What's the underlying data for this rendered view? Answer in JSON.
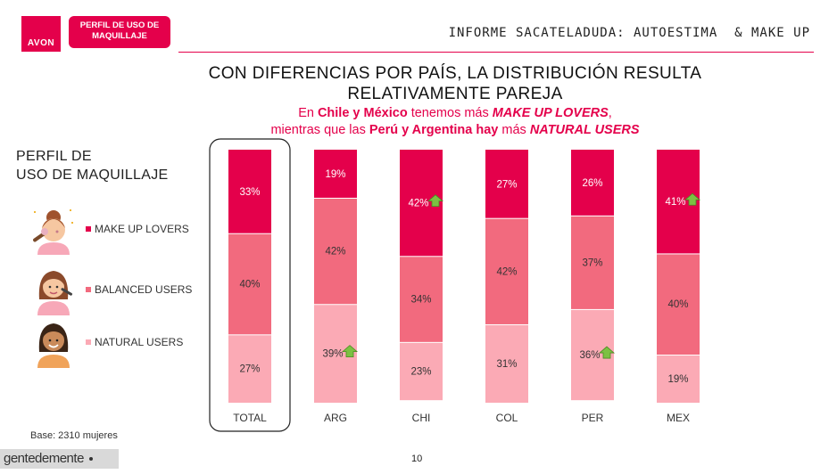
{
  "header": {
    "logo": "AVON",
    "tag_line1": "PERFIL DE USO DE",
    "tag_line2": "MAQUILLAJE",
    "report_title": "INFORME SACATELADUDA: AUTOESTIMA  & MAKE UP"
  },
  "headline": {
    "line1": "CON DIFERENCIAS POR PAÍS, LA DISTRIBUCIÓN RESULTA",
    "line2": "RELATIVAMENTE PAREJA",
    "sub1": {
      "a": "En ",
      "b": "Chile y México",
      "c": " tenemos más ",
      "d": "MAKE UP LOVERS",
      "e": ","
    },
    "sub2": {
      "a": "mientras que las ",
      "b": "Perú y Argentina hay",
      "c": " más ",
      "d": "NATURAL USERS"
    }
  },
  "side_title": {
    "line1": "PERFIL DE",
    "line2": "USO DE MAQUILLAJE"
  },
  "legend": [
    {
      "label": "MAKE UP LOVERS",
      "icon": "woman-makeup-brush-icon",
      "color": "#e4004b"
    },
    {
      "label": "BALANCED USERS",
      "icon": "woman-applying-makeup-icon",
      "color": "#f26a7e"
    },
    {
      "label": "NATURAL USERS",
      "icon": "woman-natural-face-icon",
      "color": "#fbaab5"
    }
  ],
  "chart_data": {
    "type": "bar",
    "stacked": true,
    "percent": true,
    "categories": [
      "TOTAL",
      "ARG",
      "CHI",
      "COL",
      "PER",
      "MEX"
    ],
    "series": [
      {
        "name": "MAKE UP LOVERS",
        "color": "#e4004b",
        "values": [
          33,
          19,
          42,
          27,
          26,
          41
        ]
      },
      {
        "name": "BALANCED USERS",
        "color": "#f26a7e",
        "values": [
          40,
          42,
          34,
          42,
          37,
          40
        ]
      },
      {
        "name": "NATURAL USERS",
        "color": "#fbaab5",
        "values": [
          27,
          39,
          23,
          31,
          36,
          19
        ]
      }
    ],
    "highlights": [
      {
        "category": "ARG",
        "series": "NATURAL USERS",
        "marker": "up-arrow-icon",
        "color": "#7cc142"
      },
      {
        "category": "CHI",
        "series": "MAKE UP LOVERS",
        "marker": "up-arrow-icon",
        "color": "#7cc142"
      },
      {
        "category": "PER",
        "series": "NATURAL USERS",
        "marker": "up-arrow-icon",
        "color": "#7cc142"
      },
      {
        "category": "MEX",
        "series": "MAKE UP LOVERS",
        "marker": "up-arrow-icon",
        "color": "#7cc142"
      }
    ],
    "highlight_box": "TOTAL",
    "ylim": [
      0,
      100
    ]
  },
  "footer": {
    "base": "Base: 2310 mujeres",
    "brand": "gentedemente",
    "page": "10"
  }
}
